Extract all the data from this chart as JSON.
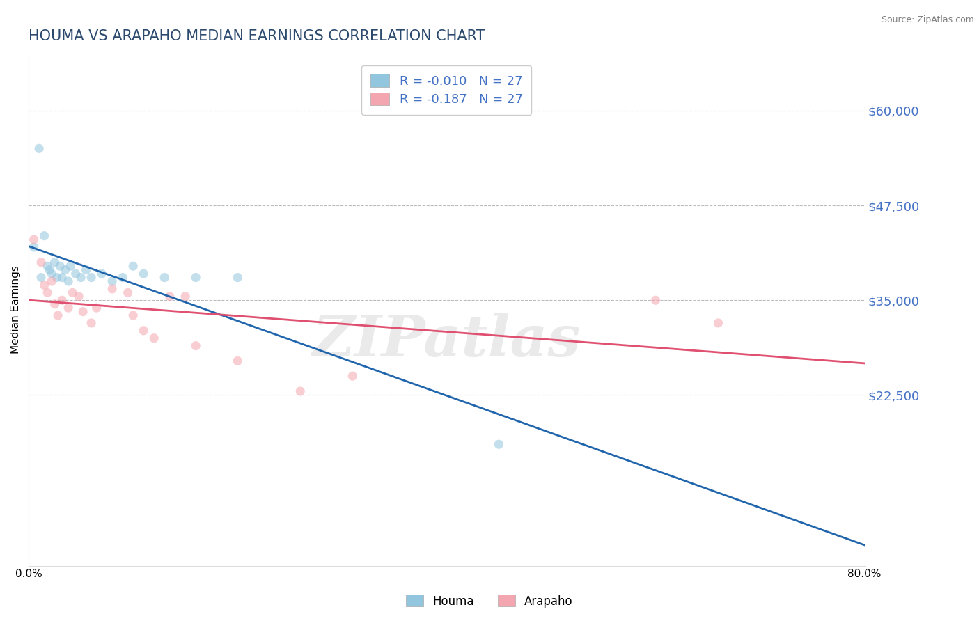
{
  "title": "HOUMA VS ARAPAHO MEDIAN EARNINGS CORRELATION CHART",
  "source_text": "Source: ZipAtlas.com",
  "ylabel": "Median Earnings",
  "xlim": [
    0.0,
    0.8
  ],
  "ylim": [
    0,
    67500
  ],
  "ytick_labels": [
    "$60,000",
    "$47,500",
    "$35,000",
    "$22,500"
  ],
  "ytick_positions": [
    60000,
    47500,
    35000,
    22500
  ],
  "houma_color": "#92c5de",
  "arapaho_color": "#f4a6b0",
  "houma_line_color": "#2166ac",
  "arapaho_line_color": "#e05070",
  "houma_R": -0.01,
  "houma_N": 27,
  "arapaho_R": -0.187,
  "arapaho_N": 27,
  "houma_points_x": [
    0.005,
    0.01,
    0.012,
    0.015,
    0.018,
    0.02,
    0.022,
    0.025,
    0.027,
    0.03,
    0.032,
    0.035,
    0.038,
    0.04,
    0.045,
    0.05,
    0.055,
    0.06,
    0.07,
    0.08,
    0.09,
    0.1,
    0.11,
    0.13,
    0.16,
    0.2,
    0.45
  ],
  "houma_points_y": [
    42000,
    55000,
    38000,
    43500,
    39500,
    39000,
    38500,
    40000,
    38000,
    39500,
    38000,
    39000,
    37500,
    39500,
    38500,
    38000,
    39000,
    38000,
    38500,
    37500,
    38000,
    39500,
    38500,
    38000,
    38000,
    38000,
    16000
  ],
  "arapaho_points_x": [
    0.005,
    0.012,
    0.015,
    0.018,
    0.022,
    0.025,
    0.028,
    0.032,
    0.038,
    0.042,
    0.048,
    0.052,
    0.06,
    0.065,
    0.08,
    0.095,
    0.1,
    0.11,
    0.12,
    0.135,
    0.15,
    0.16,
    0.2,
    0.26,
    0.31,
    0.6,
    0.66
  ],
  "arapaho_points_y": [
    43000,
    40000,
    37000,
    36000,
    37500,
    34500,
    33000,
    35000,
    34000,
    36000,
    35500,
    33500,
    32000,
    34000,
    36500,
    36000,
    33000,
    31000,
    30000,
    35500,
    35500,
    29000,
    27000,
    23000,
    25000,
    35000,
    32000
  ],
  "watermark": "ZIPatlas",
  "title_color": "#2c4a6e",
  "ytick_color": "#4472c4",
  "legend_text_color": "#4472c4",
  "background_color": "#ffffff",
  "grid_color": "#bbbbbb",
  "marker_size": 90,
  "marker_alpha": 0.55,
  "title_fontsize": 15,
  "axis_label_fontsize": 11,
  "source_fontsize": 9,
  "legend_fontsize": 13
}
